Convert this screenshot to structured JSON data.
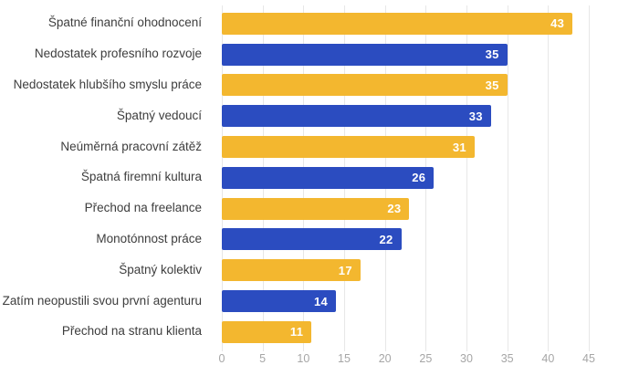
{
  "chart_data": {
    "type": "bar",
    "orientation": "horizontal",
    "categories": [
      "Špatné finanční ohodnocení",
      "Nedostatek profesního rozvoje",
      "Nedostatek hlubšího smyslu práce",
      "Špatný vedoucí",
      "Neúměrná pracovní zátěž",
      "Špatná firemní kultura",
      "Přechod na freelance",
      "Monotónnost práce",
      "Špatný kolektiv",
      "Zatím neopustili svou první agenturu",
      "Přechod na stranu klienta"
    ],
    "values": [
      43,
      35,
      35,
      33,
      31,
      26,
      23,
      22,
      17,
      14,
      11
    ],
    "bar_colors": [
      "#F3B72F",
      "#2B4CC0",
      "#F3B72F",
      "#2B4CC0",
      "#F3B72F",
      "#2B4CC0",
      "#F3B72F",
      "#2B4CC0",
      "#F3B72F",
      "#2B4CC0",
      "#F3B72F"
    ],
    "x_ticks": [
      0,
      5,
      10,
      15,
      20,
      25,
      30,
      35,
      40,
      45
    ],
    "xlim": [
      0,
      45
    ],
    "grid": true,
    "legend": "none",
    "title": "",
    "xlabel": "",
    "ylabel": "",
    "colors": {
      "yellow": "#F3B72F",
      "blue": "#2B4CC0",
      "gridline": "#E7E7E7",
      "category_label": "#3D3D3D",
      "tick_label": "#A6A6A6",
      "value_label": "#FFFFFF"
    }
  }
}
